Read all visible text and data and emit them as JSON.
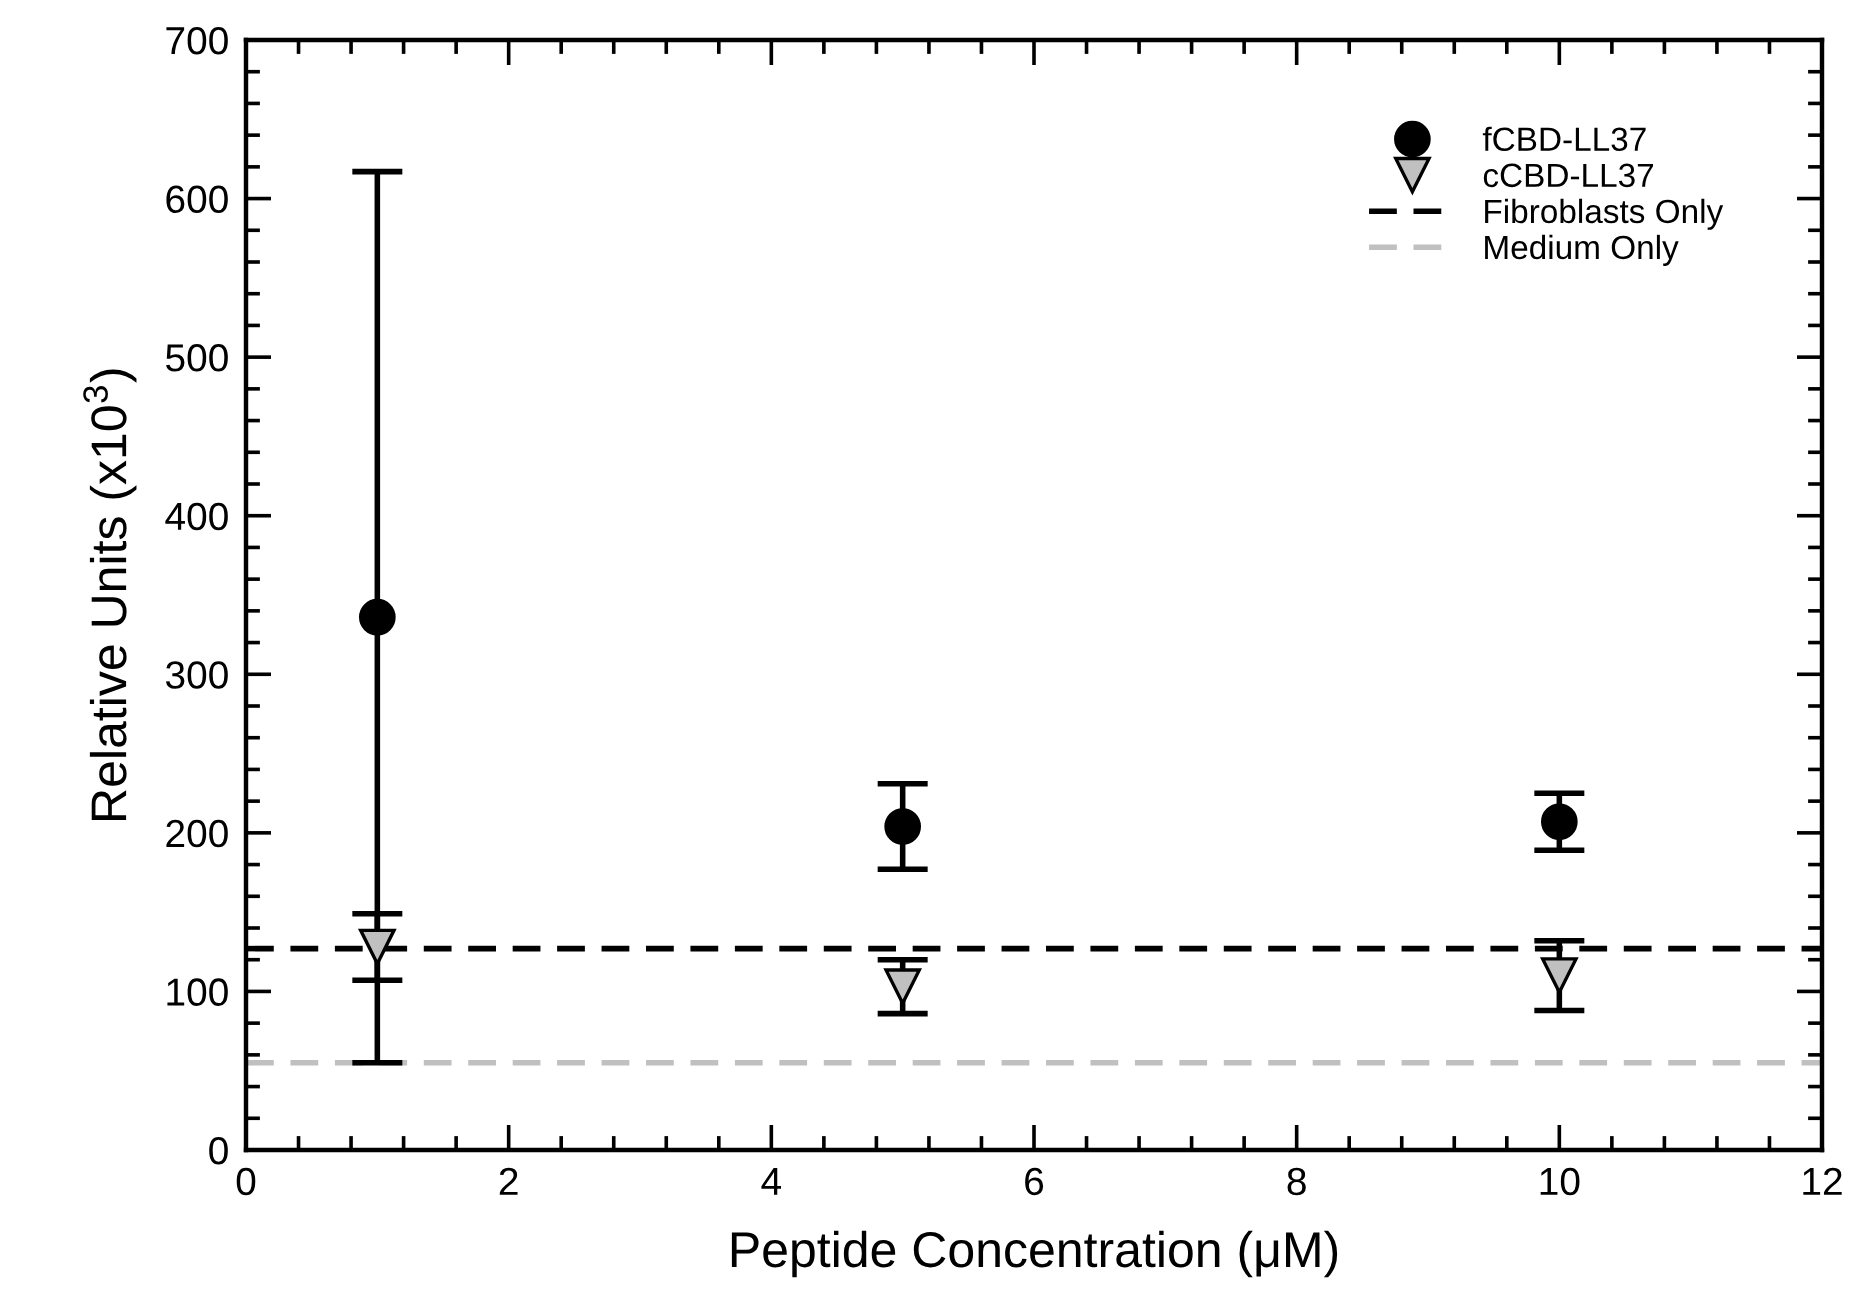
{
  "chart_data": {
    "type": "scatter",
    "xlabel": "Peptide Concentration (μM)",
    "ylabel": "Relative Units (x10$^{3}$)",
    "xlim": [
      0,
      12
    ],
    "xticks": [
      0,
      2,
      4,
      6,
      8,
      10,
      12
    ],
    "ylim": [
      0,
      700
    ],
    "yticks": [
      0,
      100,
      200,
      300,
      400,
      500,
      600,
      700
    ],
    "x": [
      1,
      5,
      10
    ],
    "series": [
      {
        "name": "fCBD-LL37",
        "color": "#000000",
        "marker": "circle",
        "values": [
          336,
          204,
          207
        ],
        "errors": [
          281,
          27,
          18
        ]
      },
      {
        "name": "cCBD-LL37",
        "color": "#c0c0c0",
        "marker": "triangle",
        "values": [
          128,
          103,
          110
        ],
        "errors": [
          21,
          17,
          22
        ]
      }
    ],
    "ref_lines": [
      {
        "axis": "y",
        "value": 127,
        "label": "Fibroblasts Only",
        "color": "#000000",
        "line_style": "dashed"
      },
      {
        "axis": "y",
        "value": 55,
        "label": "Medium Only",
        "color": "#c0c0c0",
        "line_style": "dashed"
      }
    ],
    "legend": "top right",
    "grid": false
  }
}
